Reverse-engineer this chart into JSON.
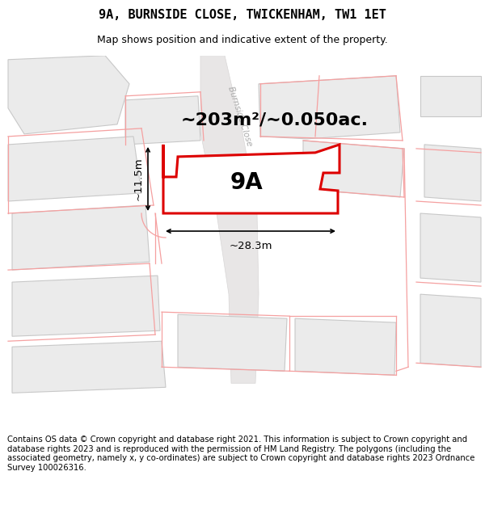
{
  "title": "9A, BURNSIDE CLOSE, TWICKENHAM, TW1 1ET",
  "subtitle": "Map shows position and indicative extent of the property.",
  "footer": "Contains OS data © Crown copyright and database right 2021. This information is subject to Crown copyright and database rights 2023 and is reproduced with the permission of HM Land Registry. The polygons (including the associated geometry, namely x, y co-ordinates) are subject to Crown copyright and database rights 2023 Ordnance Survey 100026316.",
  "area_label": "~203m²/~0.050ac.",
  "property_label": "9A",
  "dim_width": "~28.3m",
  "dim_height": "~11.5m",
  "map_bg": "#ffffff",
  "road_fill": "#e0dede",
  "building_fill": "#ebebeb",
  "building_edge": "#c8c8c8",
  "parcel_line": "#f5a0a0",
  "property_fill": "#ffffff",
  "property_edge": "#dd0000",
  "road_label_color": "#aaaaaa",
  "title_fontsize": 11,
  "subtitle_fontsize": 9,
  "footer_fontsize": 7.2,
  "area_fontsize": 16,
  "label_fontsize": 20
}
